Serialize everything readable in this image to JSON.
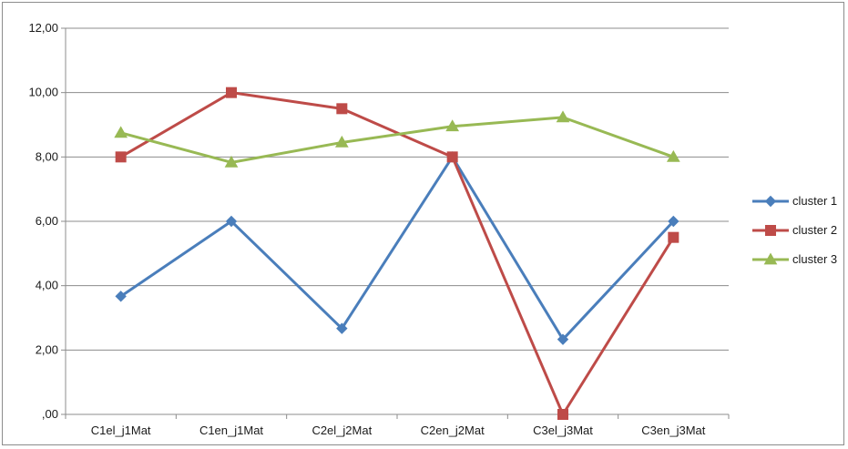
{
  "chart_data": {
    "type": "line",
    "title": "",
    "xlabel": "",
    "ylabel": "",
    "categories": [
      "C1el_j1Mat",
      "C1en_j1Mat",
      "C2el_j2Mat",
      "C2en_j2Mat",
      "C3el_j3Mat",
      "C3en_j3Mat"
    ],
    "ylim": [
      0,
      12
    ],
    "yticks": [
      0,
      2,
      4,
      6,
      8,
      10,
      12
    ],
    "ytick_labels": [
      ",00",
      "2,00",
      "4,00",
      "6,00",
      "8,00",
      "10,00",
      "12,00"
    ],
    "grid": "horizontal",
    "legend_position": "right",
    "series": [
      {
        "name": "cluster 1",
        "color": "#4a7ebb",
        "marker": "diamond",
        "values": [
          3.67,
          6.0,
          2.67,
          8.0,
          2.33,
          6.0
        ]
      },
      {
        "name": "cluster 2",
        "color": "#be4b48",
        "marker": "square",
        "values": [
          8.0,
          10.0,
          9.5,
          8.0,
          0.0,
          5.5
        ]
      },
      {
        "name": "cluster 3",
        "color": "#98b954",
        "marker": "triangle",
        "values": [
          8.75,
          7.83,
          8.45,
          8.95,
          9.23,
          8.0
        ]
      }
    ]
  }
}
